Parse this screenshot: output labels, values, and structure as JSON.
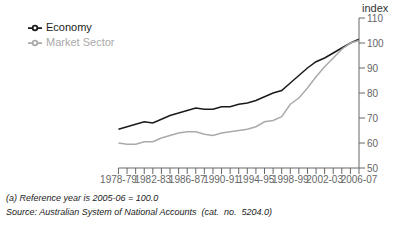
{
  "chart_data": {
    "type": "line",
    "y_label": "index",
    "annotations": [
      "(a) Reference year is 2005-06 = 100.0",
      "Source: Australian System of National Accounts  (cat.  no.  5204.0)"
    ],
    "categories": [
      "1978-79",
      null,
      null,
      null,
      "1982-83",
      null,
      null,
      null,
      "1986-87",
      null,
      null,
      null,
      "1990-91",
      null,
      null,
      null,
      "1994-95",
      null,
      null,
      null,
      "1998-99",
      null,
      null,
      null,
      "2002-03",
      null,
      null,
      null,
      "2006-07"
    ],
    "series": [
      {
        "name": "Economy",
        "color": "#1a1a1a",
        "values": [
          65.5,
          66.5,
          67.5,
          68.5,
          68.0,
          69.5,
          71.0,
          72.0,
          73.0,
          74.0,
          73.5,
          73.5,
          74.5,
          74.5,
          75.5,
          76.0,
          77.0,
          78.5,
          80.0,
          81.0,
          84.0,
          87.0,
          90.0,
          92.5,
          94.0,
          96.0,
          98.0,
          100.0,
          101.5
        ]
      },
      {
        "name": "Market Sector",
        "color": "#aaaaaa",
        "values": [
          60.0,
          59.5,
          59.5,
          60.5,
          60.5,
          62.0,
          63.0,
          64.0,
          64.5,
          64.5,
          63.5,
          63.0,
          64.0,
          64.5,
          65.0,
          65.5,
          66.5,
          68.5,
          69.0,
          70.5,
          75.5,
          78.0,
          82.0,
          86.5,
          90.5,
          94.0,
          97.5,
          100.0,
          101.0
        ]
      }
    ],
    "ylim": [
      50,
      110
    ],
    "yticks": [
      50,
      60,
      70,
      80,
      90,
      100,
      110
    ],
    "grid": false,
    "legend": "upper left"
  }
}
